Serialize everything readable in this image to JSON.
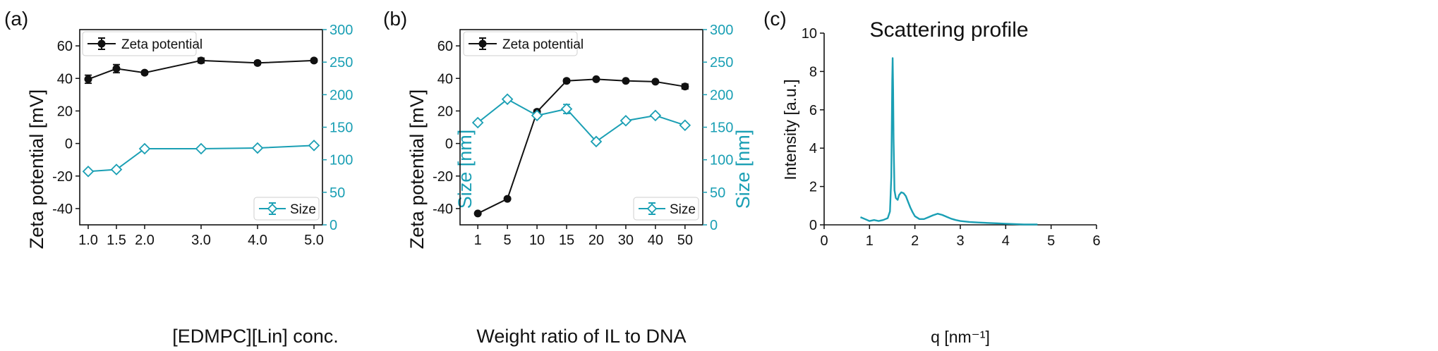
{
  "colors": {
    "zeta": "#111111",
    "size": "#1a9fb4",
    "curve": "#1a9fb4",
    "axis": "#111111"
  },
  "chart_data": [
    {
      "panel_label": "(a)",
      "type": "line",
      "xlabel": "[EDMPC][Lin] conc.",
      "x_scale": "linear",
      "xlim": [
        0.85,
        5.15
      ],
      "x": [
        1.0,
        1.5,
        2.0,
        3.0,
        4.0,
        5.0
      ],
      "x_tick_labels": [
        "1.0",
        "1.5",
        "2.0",
        "3.0",
        "4.0",
        "5.0"
      ],
      "ylabel": "Zeta potential [mV]",
      "ylim": [
        -50,
        70
      ],
      "yticks": [
        -40,
        -20,
        0,
        20,
        40,
        60
      ],
      "y2label": "Size [nm]",
      "y2lim": [
        0,
        300
      ],
      "y2ticks": [
        0,
        50,
        100,
        150,
        200,
        250,
        300
      ],
      "grid": false,
      "series": [
        {
          "name": "Zeta potential",
          "axis": "left",
          "marker": "circle",
          "values": [
            39.5,
            46.0,
            43.5,
            51.0,
            49.5,
            51.0
          ],
          "errors": [
            2.5,
            2.5,
            1.0,
            1.5,
            1.0,
            1.0
          ],
          "legend_position": "top-left"
        },
        {
          "name": "Size",
          "axis": "right",
          "marker": "diamond",
          "values": [
            82,
            85,
            117,
            117,
            118,
            122
          ],
          "errors": [
            0,
            0,
            0,
            0,
            0,
            0
          ],
          "legend_position": "bottom-right"
        }
      ]
    },
    {
      "panel_label": "(b)",
      "type": "line",
      "xlabel": "Weight ratio of IL to DNA",
      "x_scale": "categorical",
      "x_tick_labels": [
        "1",
        "5",
        "10",
        "15",
        "20",
        "30",
        "40",
        "50"
      ],
      "x": [
        1,
        5,
        10,
        15,
        20,
        30,
        40,
        50
      ],
      "ylabel": "Zeta potential [mV]",
      "ylim": [
        -50,
        70
      ],
      "yticks": [
        -40,
        -20,
        0,
        20,
        40,
        60
      ],
      "y2label": "Size [nm]",
      "y2lim": [
        0,
        300
      ],
      "y2ticks": [
        0,
        50,
        100,
        150,
        200,
        250,
        300
      ],
      "grid": false,
      "series": [
        {
          "name": "Zeta potential",
          "axis": "left",
          "marker": "circle",
          "values": [
            -43,
            -34,
            19.5,
            38.5,
            39.5,
            38.5,
            38.0,
            35.0
          ],
          "errors": [
            0,
            0,
            1.0,
            1.0,
            0.5,
            0.5,
            0.5,
            1.5
          ],
          "legend_position": "top-left"
        },
        {
          "name": "Size",
          "axis": "right",
          "marker": "diamond",
          "values": [
            157,
            193,
            168,
            178,
            128,
            160,
            168,
            153
          ],
          "errors": [
            0,
            0,
            0,
            7,
            0,
            0,
            0,
            0
          ],
          "legend_position": "bottom-right"
        }
      ]
    },
    {
      "panel_label": "(c)",
      "type": "line",
      "title": "Scattering profile",
      "xlabel": "q [nm⁻¹]",
      "ylabel": "Intensity [a.u.]",
      "xlim": [
        0,
        6
      ],
      "xticks": [
        0,
        1,
        2,
        3,
        4,
        5,
        6
      ],
      "ylim": [
        0,
        10
      ],
      "yticks": [
        0,
        2,
        4,
        6,
        8,
        10
      ],
      "grid": false,
      "series": [
        {
          "x": [
            0.8,
            0.9,
            1.0,
            1.1,
            1.2,
            1.3,
            1.4,
            1.45,
            1.48,
            1.5,
            1.51,
            1.52,
            1.53,
            1.55,
            1.58,
            1.62,
            1.65,
            1.7,
            1.75,
            1.8,
            1.85,
            1.9,
            1.95,
            2.0,
            2.1,
            2.2,
            2.3,
            2.4,
            2.5,
            2.6,
            2.7,
            2.8,
            2.9,
            3.0,
            3.2,
            3.4,
            3.6,
            3.8,
            4.0,
            4.2,
            4.4,
            4.7
          ],
          "values": [
            0.4,
            0.3,
            0.2,
            0.25,
            0.2,
            0.25,
            0.35,
            0.7,
            2.5,
            7.5,
            8.7,
            7.0,
            4.5,
            1.8,
            1.4,
            1.3,
            1.55,
            1.7,
            1.65,
            1.5,
            1.2,
            0.9,
            0.65,
            0.45,
            0.3,
            0.3,
            0.4,
            0.5,
            0.58,
            0.52,
            0.42,
            0.32,
            0.25,
            0.2,
            0.15,
            0.12,
            0.1,
            0.08,
            0.06,
            0.04,
            0.02,
            0.02
          ]
        }
      ]
    }
  ]
}
